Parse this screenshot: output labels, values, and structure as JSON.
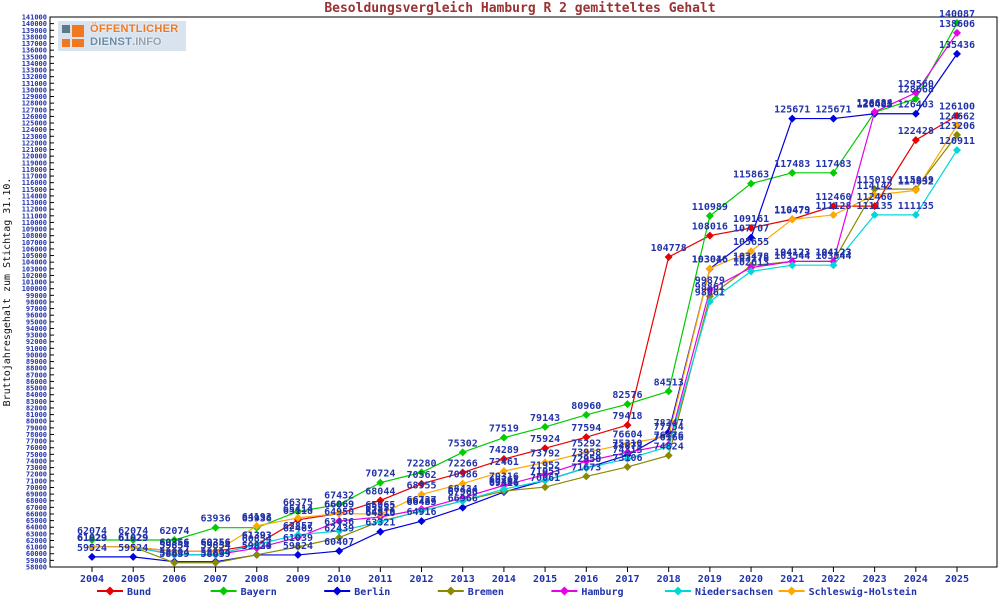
{
  "logo": {
    "line1": "ÖFFENTLICHER",
    "line2": "DIENST",
    "line2_suffix": ".INFO"
  },
  "colors": {
    "title": "#993333",
    "value_labels": "#2233aa",
    "axis": "#000000",
    "background": "#ffffff"
  },
  "chart_data": {
    "type": "line",
    "title": "Besoldungsvergleich Hamburg R 2 gemitteltes Gehalt",
    "xlabel": "",
    "ylabel": "Bruttojahresgehalt zum Stichtag 31.10.",
    "ylim": [
      58000,
      141000
    ],
    "y_tick_step": 1000,
    "grid": false,
    "marker": "diamond",
    "legend_position": "bottom",
    "x": [
      2004,
      2005,
      2006,
      2007,
      2008,
      2009,
      2010,
      2011,
      2012,
      2013,
      2014,
      2015,
      2016,
      2017,
      2018,
      2019,
      2020,
      2021,
      2022,
      2023,
      2024,
      2025
    ],
    "series": [
      {
        "name": "Bund",
        "color": "#e80000",
        "values": [
          61029,
          61029,
          60356,
          60356,
          61393,
          65118,
          66069,
          68044,
          70562,
          72266,
          74289,
          75924,
          77594,
          79418,
          104778,
          108016,
          109161,
          110479,
          112460,
          112460,
          122428,
          126100
        ]
      },
      {
        "name": "Bayern",
        "color": "#00cc00",
        "values": [
          62074,
          62074,
          62074,
          63936,
          63936,
          66375,
          67432,
          70724,
          72280,
          75302,
          77519,
          79143,
          80960,
          82576,
          84513,
          110989,
          115863,
          117483,
          117483,
          126623,
          128668,
          140087
        ]
      },
      {
        "name": "Berlin",
        "color": "#0000e0",
        "values": [
          59524,
          59524,
          58804,
          58804,
          59824,
          59824,
          60407,
          63321,
          64916,
          66966,
          69316,
          71053,
          72950,
          74873,
          78347,
          103016,
          107707,
          125671,
          125671,
          126403,
          126403,
          135436
        ]
      },
      {
        "name": "Bremen",
        "color": "#8a8a00",
        "values": [
          61029,
          61029,
          58639,
          58639,
          59839,
          61039,
          62439,
          64919,
          66439,
          67966,
          69461,
          70061,
          71673,
          73106,
          74824,
          98861,
          103478,
          104123,
          104123,
          115019,
          115049,
          123206
        ]
      },
      {
        "name": "Hamburg",
        "color": "#e800e8",
        "values": [
          61029,
          61029,
          59854,
          59854,
          60854,
          62465,
          64950,
          65552,
          66737,
          68434,
          70316,
          71952,
          73958,
          75310,
          76476,
          99879,
          103178,
          104123,
          104123,
          126684,
          129560,
          138606
        ]
      },
      {
        "name": "Niedersachsen",
        "color": "#00d8d8",
        "values": [
          61029,
          61029,
          59854,
          59854,
          61393,
          62857,
          63436,
          64816,
          66465,
          67966,
          69761,
          71053,
          72958,
          74313,
          76166,
          98061,
          102613,
          103544,
          103544,
          111135,
          111135,
          120911
        ]
      },
      {
        "name": "Schleswig-Holstein",
        "color": "#ffa800",
        "values": [
          61029,
          61029,
          60356,
          60356,
          64193,
          65414,
          66069,
          65965,
          68955,
          70586,
          72461,
          73792,
          75292,
          76604,
          77754,
          103046,
          105655,
          110473,
          111128,
          114142,
          114832,
          124662
        ]
      }
    ]
  }
}
